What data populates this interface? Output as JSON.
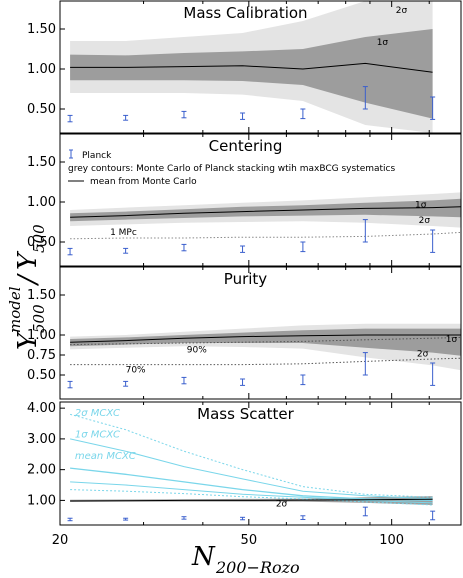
{
  "chart_data": {
    "type": "line",
    "xscale": "log",
    "xlim": [
      20,
      140
    ],
    "x_ticks": [
      "20",
      "50",
      "100"
    ],
    "xlabel": "N",
    "xlabel_sub": "200−Rozo",
    "ylabel_main": "Y",
    "ylabel_sub": "500",
    "ylabel_sup": "model",
    "ylabel_denom": "Y",
    "ylabel_denom_sub": "500",
    "ylabel_slash": "/",
    "colors": {
      "light_band": "#e4e4e4",
      "dark_band": "#9d9d9d",
      "planck": "#3a5fcd",
      "cyan": "#7ad6ea",
      "mean": "#000000",
      "dotted": "#888888"
    },
    "planck": {
      "label": "Planck",
      "x": [
        21,
        27.5,
        36.5,
        48.5,
        65,
        88,
        122
      ],
      "y": [
        0.38,
        0.39,
        0.43,
        0.41,
        0.44,
        0.64,
        0.51
      ],
      "err": [
        0.04,
        0.03,
        0.04,
        0.04,
        0.06,
        0.14,
        0.14
      ]
    },
    "panels": [
      {
        "title": "Mass Calibration",
        "ylim": [
          0.2,
          1.85
        ],
        "yticks": [
          "0.50",
          "1.00",
          "1.50"
        ],
        "ytick_values": [
          0.5,
          1.0,
          1.5
        ],
        "x": [
          21,
          27.5,
          36.5,
          48.5,
          65,
          88,
          122
        ],
        "mean": [
          1.02,
          1.02,
          1.03,
          1.04,
          1.0,
          1.07,
          0.96
        ],
        "band1_lo": [
          0.86,
          0.86,
          0.86,
          0.85,
          0.8,
          0.58,
          0.38
        ],
        "band1_hi": [
          1.18,
          1.17,
          1.2,
          1.22,
          1.25,
          1.4,
          1.5
        ],
        "band2_lo": [
          0.7,
          0.7,
          0.7,
          0.68,
          0.6,
          0.3,
          0.2
        ],
        "band2_hi": [
          1.35,
          1.35,
          1.4,
          1.45,
          1.6,
          1.85,
          1.85
        ],
        "annotations": [
          {
            "text": "2σ",
            "x": 102,
            "y": 1.7
          },
          {
            "text": "1σ",
            "x": 93,
            "y": 1.3
          }
        ]
      },
      {
        "title": "Centering",
        "ylim": [
          0.2,
          1.85
        ],
        "yticks": [
          "0.50",
          "1.00",
          "1.50"
        ],
        "ytick_values": [
          0.5,
          1.0,
          1.5
        ],
        "x": [
          21,
          27.5,
          36.5,
          48.5,
          65,
          88,
          122,
          140
        ],
        "mean": [
          0.81,
          0.83,
          0.86,
          0.88,
          0.9,
          0.92,
          0.93,
          0.94
        ],
        "band1_lo": [
          0.76,
          0.78,
          0.8,
          0.82,
          0.83,
          0.84,
          0.82,
          0.81
        ],
        "band1_hi": [
          0.86,
          0.88,
          0.91,
          0.94,
          0.96,
          0.99,
          1.02,
          1.04
        ],
        "band2_lo": [
          0.7,
          0.72,
          0.74,
          0.75,
          0.76,
          0.74,
          0.7,
          0.68
        ],
        "band2_hi": [
          0.9,
          0.93,
          0.96,
          0.99,
          1.02,
          1.06,
          1.1,
          1.12
        ],
        "dotted": [
          0.54,
          0.55,
          0.55,
          0.56,
          0.56,
          0.57,
          0.6,
          0.62
        ],
        "legend": {
          "planck": "Planck",
          "contours": "grey contours: Monte Carlo of Planck stacking wtih maxBCG systematics",
          "mean": "mean from Monte Carlo"
        },
        "annotations": [
          {
            "text": "1 MPc",
            "x": 25.5,
            "y": 0.59
          },
          {
            "text": "1σ",
            "x": 112,
            "y": 0.93
          },
          {
            "text": "2σ",
            "x": 114,
            "y": 0.74
          }
        ]
      },
      {
        "title": "Purity",
        "ylim": [
          0.2,
          1.85
        ],
        "yticks": [
          "0.50",
          "0.75",
          "1.00",
          "1.50"
        ],
        "ytick_values": [
          0.5,
          0.75,
          1.0,
          1.5
        ],
        "x": [
          21,
          27.5,
          36.5,
          48.5,
          65,
          88,
          122,
          140
        ],
        "mean": [
          0.91,
          0.93,
          0.96,
          0.98,
          0.99,
          1.0,
          1.0,
          1.0
        ],
        "band1_lo": [
          0.86,
          0.88,
          0.9,
          0.9,
          0.9,
          0.84,
          0.78,
          0.74
        ],
        "band1_hi": [
          0.95,
          0.97,
          1.0,
          1.03,
          1.06,
          1.08,
          1.08,
          1.08
        ],
        "band2_lo": [
          0.82,
          0.84,
          0.86,
          0.85,
          0.83,
          0.72,
          0.62,
          0.56
        ],
        "band2_hi": [
          0.98,
          1.0,
          1.04,
          1.08,
          1.12,
          1.14,
          1.14,
          1.14
        ],
        "dotted_90": [
          0.88,
          0.89,
          0.9,
          0.91,
          0.92,
          0.94,
          0.96,
          0.97
        ],
        "dotted_70": [
          0.63,
          0.63,
          0.63,
          0.63,
          0.64,
          0.67,
          0.7,
          0.71
        ],
        "annotations": [
          {
            "text": "90%",
            "x": 37,
            "y": 0.78
          },
          {
            "text": "70%",
            "x": 27.5,
            "y": 0.53
          },
          {
            "text": "1σ",
            "x": 130,
            "y": 0.91
          },
          {
            "text": "2σ",
            "x": 113,
            "y": 0.73
          }
        ]
      },
      {
        "title": "Mass Scatter",
        "ylim": [
          0.2,
          4.2
        ],
        "yticks": [
          "1.00",
          "2.00",
          "3.00",
          "4.00"
        ],
        "ytick_values": [
          1.0,
          2.0,
          3.0,
          4.0
        ],
        "x": [
          21,
          27.5,
          36.5,
          48.5,
          65,
          88,
          122
        ],
        "mean": [
          0.98,
          0.99,
          1.0,
          1.0,
          1.01,
          1.02,
          1.04
        ],
        "band1_lo": [
          0.95,
          0.96,
          0.96,
          0.96,
          0.96,
          0.92,
          0.85
        ],
        "band1_hi": [
          1.02,
          1.03,
          1.04,
          1.05,
          1.06,
          1.1,
          1.14
        ],
        "cyan_mean": [
          2.05,
          1.85,
          1.6,
          1.35,
          1.15,
          1.05,
          1.0
        ],
        "cyan_1s_hi": [
          3.0,
          2.6,
          2.1,
          1.7,
          1.3,
          1.15,
          1.05
        ],
        "cyan_1s_lo": [
          1.6,
          1.5,
          1.35,
          1.2,
          1.1,
          1.0,
          0.92
        ],
        "cyan_2s_hi": [
          3.8,
          3.3,
          2.6,
          2.0,
          1.45,
          1.2,
          1.1
        ],
        "cyan_2s_lo": [
          1.35,
          1.3,
          1.22,
          1.12,
          1.05,
          0.95,
          0.85
        ],
        "annotations": [
          {
            "text": "2σ MCXC",
            "x": 21.5,
            "y": 3.75
          },
          {
            "text": "1σ MCXC",
            "x": 21.5,
            "y": 3.05
          },
          {
            "text": "mean MCXC",
            "x": 21.5,
            "y": 2.35
          },
          {
            "text": "2σ",
            "x": 57,
            "y": 0.8
          }
        ]
      }
    ]
  }
}
